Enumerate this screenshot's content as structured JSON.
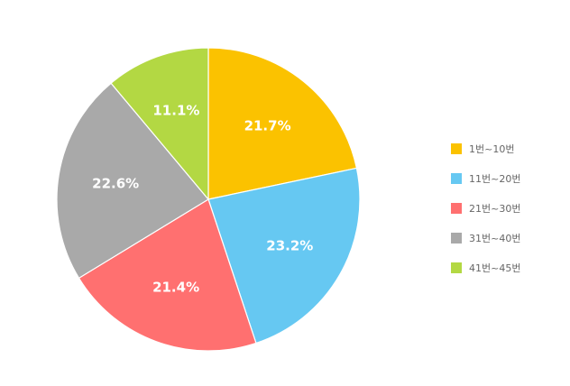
{
  "chart_data": {
    "type": "pie",
    "title": "",
    "categories": [
      "1번~10번",
      "11번~20번",
      "21번~30번",
      "31번~40번",
      "41번~45번"
    ],
    "values": [
      21.7,
      23.2,
      21.4,
      22.6,
      11.1
    ],
    "labels": [
      "21.7%",
      "23.2%",
      "21.4%",
      "22.6%",
      "11.1%"
    ],
    "colors": [
      "#FBC200",
      "#66C8F2",
      "#FF7070",
      "#A9A9A9",
      "#B3D843"
    ],
    "legend_position": "right"
  }
}
